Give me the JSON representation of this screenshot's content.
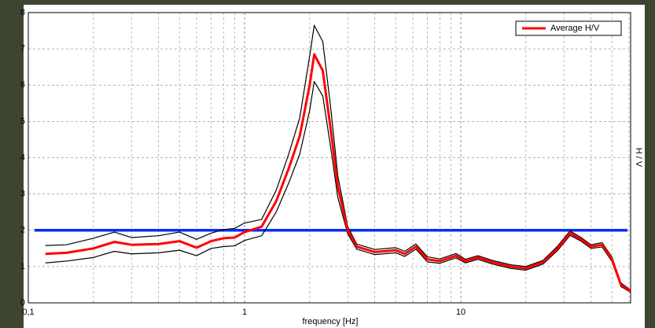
{
  "chart_data": {
    "type": "line",
    "x_label": "frequency [Hz]",
    "y_label": "H / V",
    "x_scale": "log",
    "xlim": [
      0.1,
      61
    ],
    "ylim": [
      0,
      8
    ],
    "xticks": [
      {
        "value": 0.1,
        "label": "0,1"
      },
      1,
      10
    ],
    "minor_xticks": [
      0.2,
      0.3,
      0.4,
      0.5,
      0.6,
      0.7,
      0.8,
      0.9,
      2,
      3,
      4,
      5,
      6,
      7,
      8,
      9,
      20,
      30,
      40,
      50,
      60
    ],
    "yticks": [
      0,
      1,
      2,
      3,
      4,
      5,
      6,
      7,
      8
    ],
    "grid": true,
    "legend": "top-right",
    "reference_line": {
      "value": 2,
      "color": "#0a2cff"
    },
    "x": [
      0.12,
      0.15,
      0.2,
      0.25,
      0.3,
      0.4,
      0.5,
      0.6,
      0.7,
      0.8,
      0.9,
      1,
      1.2,
      1.4,
      1.6,
      1.8,
      2,
      2.1,
      2.3,
      2.5,
      2.7,
      3,
      3.3,
      4,
      5,
      5.5,
      6.2,
      7,
      8,
      9.5,
      10.5,
      12,
      14,
      17,
      20,
      24,
      28,
      32,
      36,
      40,
      45,
      50,
      55,
      61
    ],
    "series": [
      {
        "color": "#000000",
        "values": [
          1.58,
          1.6,
          1.78,
          1.95,
          1.8,
          1.85,
          1.95,
          1.75,
          1.92,
          2.02,
          2.05,
          2.2,
          2.3,
          3.1,
          4.1,
          5.1,
          6.8,
          7.65,
          7.2,
          5.4,
          3.5,
          2.1,
          1.62,
          1.47,
          1.52,
          1.42,
          1.62,
          1.27,
          1.21,
          1.36,
          1.2,
          1.3,
          1.17,
          1.05,
          1.0,
          1.17,
          1.56,
          1.98,
          1.8,
          1.6,
          1.66,
          1.26,
          0.55,
          0.35
        ]
      },
      {
        "color": "#000000",
        "values": [
          1.1,
          1.15,
          1.25,
          1.42,
          1.35,
          1.38,
          1.45,
          1.3,
          1.5,
          1.55,
          1.57,
          1.72,
          1.85,
          2.5,
          3.3,
          4.1,
          5.3,
          6.1,
          5.7,
          4.3,
          2.9,
          1.9,
          1.48,
          1.33,
          1.38,
          1.28,
          1.48,
          1.13,
          1.09,
          1.24,
          1.1,
          1.2,
          1.07,
          0.95,
          0.9,
          1.07,
          1.44,
          1.86,
          1.7,
          1.5,
          1.54,
          1.14,
          0.45,
          0.29
        ]
      },
      {
        "name": "Average H/V",
        "color": "#ff0000",
        "values": [
          1.35,
          1.38,
          1.5,
          1.68,
          1.6,
          1.62,
          1.7,
          1.52,
          1.7,
          1.78,
          1.8,
          1.95,
          2.1,
          2.8,
          3.7,
          4.6,
          6.0,
          6.85,
          6.4,
          4.8,
          3.2,
          2.0,
          1.55,
          1.4,
          1.45,
          1.35,
          1.55,
          1.2,
          1.15,
          1.3,
          1.15,
          1.25,
          1.12,
          1.0,
          0.95,
          1.12,
          1.5,
          1.92,
          1.75,
          1.55,
          1.6,
          1.2,
          0.5,
          0.32
        ]
      }
    ]
  }
}
